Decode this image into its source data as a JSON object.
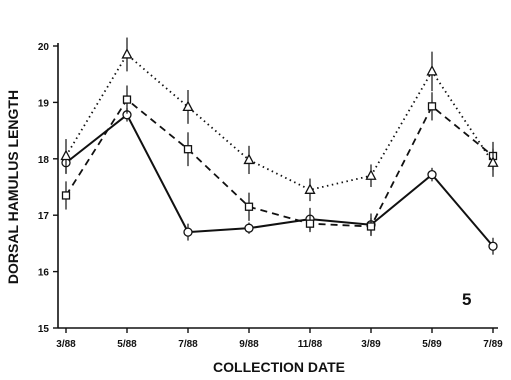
{
  "chart_data": {
    "type": "line",
    "title": "",
    "xlabel": "COLLECTION DATE",
    "ylabel": "DORSAL HAMULUS LENGTH",
    "categories": [
      "3/88",
      "5/88",
      "7/88",
      "9/88",
      "11/88",
      "3/89",
      "5/89",
      "7/89"
    ],
    "ylim": [
      15,
      20
    ],
    "yticks": [
      15,
      16,
      17,
      18,
      19,
      20
    ],
    "grid": false,
    "legend": "none",
    "annotation": "5",
    "series": [
      {
        "marker": "circle",
        "line_style": "solid",
        "values": [
          17.93,
          18.78,
          16.7,
          16.77,
          16.93,
          16.83,
          17.72,
          16.45
        ],
        "errors": [
          0.2,
          0.12,
          0.15,
          0.1,
          0.2,
          0.2,
          0.12,
          0.15
        ]
      },
      {
        "marker": "square",
        "line_style": "dashed",
        "values": [
          17.35,
          19.05,
          18.17,
          17.15,
          16.85,
          16.8,
          18.93,
          18.05
        ],
        "errors": [
          0.25,
          0.25,
          0.3,
          0.25,
          0.15,
          0.15,
          0.25,
          0.25
        ]
      },
      {
        "marker": "triangle",
        "line_style": "dotted",
        "values": [
          18.05,
          19.85,
          18.92,
          17.98,
          17.45,
          17.7,
          19.55,
          17.93
        ],
        "errors": [
          0.3,
          0.3,
          0.3,
          0.25,
          0.2,
          0.2,
          0.35,
          0.25
        ]
      }
    ]
  }
}
